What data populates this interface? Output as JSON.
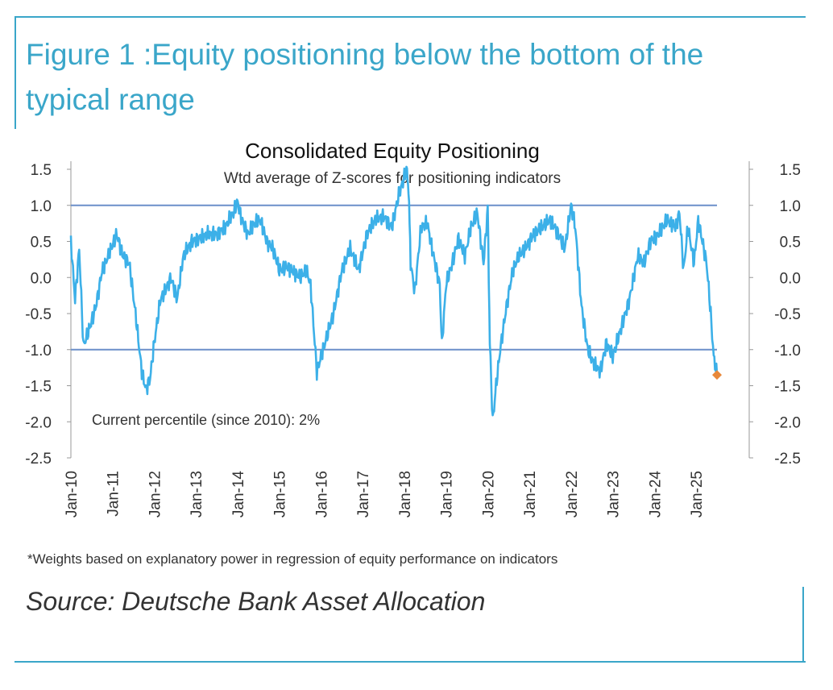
{
  "figure": {
    "title": "Figure 1 :Equity positioning below the bottom of the typical range",
    "footnote": "*Weights based on explanatory power in regression of equity performance on indicators",
    "source": "Source: Deutsche Bank Asset Allocation"
  },
  "colors": {
    "accent": "#3aa6c9",
    "series": "#3cb0e8",
    "band": "#6b8fc9",
    "marker": "#e8883a"
  },
  "chart_data": {
    "type": "line",
    "title": "Consolidated Equity Positioning",
    "subtitle": "Wtd average of Z-scores for positioning indicators",
    "annotation": "Current percentile (since 2010): 2%",
    "xlabel": "",
    "ylabel": "",
    "ylim": [
      -2.5,
      1.5
    ],
    "yticks": [
      "1.5",
      "1.0",
      "0.5",
      "0.0",
      "-0.5",
      "-1.0",
      "-1.5",
      "-2.0",
      "-2.5"
    ],
    "xlim": [
      2010.0,
      2025.5
    ],
    "xticks": [
      "Jan-10",
      "Jan-11",
      "Jan-12",
      "Jan-13",
      "Jan-14",
      "Jan-15",
      "Jan-16",
      "Jan-17",
      "Jan-18",
      "Jan-19",
      "Jan-20",
      "Jan-21",
      "Jan-22",
      "Jan-23",
      "Jan-24",
      "Jan-25"
    ],
    "reference_lines": [
      1.0,
      -1.0
    ],
    "series": [
      {
        "name": "Consolidated Equity Positioning",
        "x": [
          2010.0,
          2010.1,
          2010.2,
          2010.3,
          2010.45,
          2010.6,
          2010.75,
          2010.9,
          2011.1,
          2011.25,
          2011.4,
          2011.55,
          2011.7,
          2011.8,
          2011.9,
          2012.0,
          2012.15,
          2012.25,
          2012.4,
          2012.55,
          2012.7,
          2012.9,
          2013.1,
          2013.3,
          2013.5,
          2013.7,
          2013.9,
          2014.0,
          2014.1,
          2014.25,
          2014.4,
          2014.55,
          2014.7,
          2014.85,
          2015.0,
          2015.2,
          2015.4,
          2015.5,
          2015.65,
          2015.75,
          2015.9,
          2016.1,
          2016.3,
          2016.5,
          2016.7,
          2016.9,
          2017.1,
          2017.3,
          2017.5,
          2017.7,
          2017.85,
          2017.95,
          2018.05,
          2018.1,
          2018.15,
          2018.25,
          2018.4,
          2018.55,
          2018.7,
          2018.85,
          2018.9,
          2019.0,
          2019.15,
          2019.3,
          2019.45,
          2019.6,
          2019.75,
          2019.9,
          2020.0,
          2020.05,
          2020.12,
          2020.2,
          2020.3,
          2020.45,
          2020.6,
          2020.75,
          2020.9,
          2021.1,
          2021.3,
          2021.5,
          2021.7,
          2021.85,
          2022.0,
          2022.1,
          2022.25,
          2022.4,
          2022.55,
          2022.7,
          2022.85,
          2023.0,
          2023.2,
          2023.4,
          2023.6,
          2023.75,
          2023.9,
          2024.1,
          2024.3,
          2024.5,
          2024.6,
          2024.7,
          2024.8,
          2024.95,
          2025.05,
          2025.15,
          2025.25,
          2025.35,
          2025.42,
          2025.5
        ],
        "values": [
          0.5,
          -0.3,
          0.4,
          -0.95,
          -0.7,
          -0.4,
          0.1,
          0.3,
          0.6,
          0.3,
          0.2,
          -0.5,
          -1.3,
          -1.55,
          -1.4,
          -0.9,
          -0.3,
          -0.2,
          0.0,
          -0.3,
          0.3,
          0.5,
          0.55,
          0.6,
          0.6,
          0.7,
          0.9,
          1.05,
          0.8,
          0.6,
          0.75,
          0.8,
          0.5,
          0.4,
          0.1,
          0.15,
          0.05,
          0.0,
          0.1,
          -0.1,
          -1.3,
          -0.9,
          -0.5,
          0.1,
          0.4,
          0.1,
          0.6,
          0.8,
          0.85,
          0.7,
          1.1,
          1.3,
          1.5,
          1.25,
          0.2,
          -0.2,
          0.7,
          0.75,
          0.3,
          -0.1,
          -0.95,
          -0.1,
          0.2,
          0.55,
          0.3,
          0.7,
          0.9,
          0.2,
          0.95,
          -0.9,
          -2.0,
          -1.5,
          -1.0,
          -0.4,
          0.1,
          0.3,
          0.4,
          0.6,
          0.7,
          0.8,
          0.6,
          0.4,
          1.0,
          0.7,
          -0.4,
          -1.0,
          -1.2,
          -1.3,
          -0.9,
          -1.1,
          -0.7,
          -0.3,
          0.3,
          0.2,
          0.5,
          0.6,
          0.8,
          0.7,
          0.9,
          0.1,
          0.7,
          0.2,
          0.8,
          0.5,
          0.2,
          -0.5,
          -1.1,
          -1.35
        ]
      }
    ],
    "current_point": {
      "x": 2025.5,
      "y": -1.35
    }
  }
}
